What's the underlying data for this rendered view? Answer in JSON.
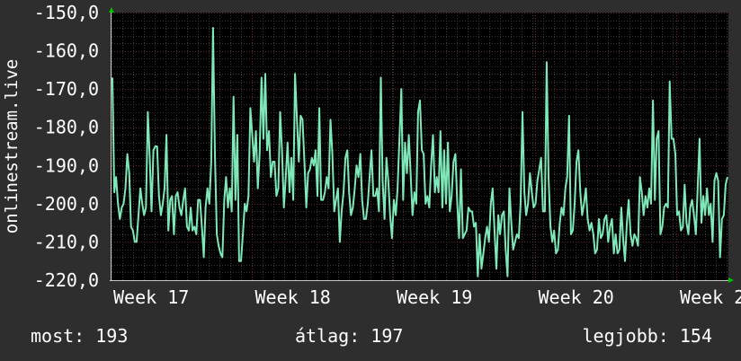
{
  "chart_data": {
    "type": "line",
    "ylabel": "onlinestream.live",
    "y_ticks": [
      "-150,0",
      "-160,0",
      "-170,0",
      "-180,0",
      "-190,0",
      "-200,0",
      "-210,0",
      "-220,0"
    ],
    "ylim": [
      -220,
      -150
    ],
    "x_ticks": [
      "Week 17",
      "Week 18",
      "Week 19",
      "Week 20",
      "Week 2"
    ],
    "grid": true,
    "colors": {
      "background": "#2e2e2e",
      "plot": "#000000",
      "line": "#7fe8b8",
      "minor_grid": "#3a3a3a",
      "major_grid": "#6b2a2a",
      "axis_marker": "#00c000"
    },
    "series": [
      {
        "values": [
          -167,
          -197,
          -193,
          -200,
          -204,
          -201,
          -200,
          -196,
          -187,
          -192,
          -206,
          -207,
          -210,
          -210,
          -203,
          -196,
          -200,
          -203,
          -201,
          -176,
          -188,
          -202,
          -186,
          -185,
          -185,
          -198,
          -203,
          -200,
          -196,
          -182,
          -207,
          -199,
          -198,
          -208,
          -198,
          -197,
          -201,
          -203,
          -199,
          -196,
          -206,
          -207,
          -201,
          -207,
          -206,
          -208,
          -199,
          -199,
          -206,
          -214,
          -201,
          -196,
          -200,
          -189,
          -154,
          -187,
          -208,
          -211,
          -213,
          -214,
          -199,
          -193,
          -201,
          -196,
          -202,
          -172,
          -199,
          -182,
          -215,
          -215,
          -208,
          -200,
          -202,
          -198,
          -175,
          -182,
          -189,
          -181,
          -196,
          -187,
          -167,
          -183,
          -166,
          -186,
          -181,
          -193,
          -189,
          -189,
          -198,
          -196,
          -176,
          -186,
          -201,
          -193,
          -184,
          -197,
          -188,
          -199,
          -166,
          -178,
          -189,
          -177,
          -178,
          -189,
          -201,
          -192,
          -191,
          -188,
          -190,
          -186,
          -198,
          -175,
          -199,
          -199,
          -197,
          -193,
          -196,
          -178,
          -187,
          -202,
          -199,
          -196,
          -210,
          -202,
          -197,
          -188,
          -186,
          -197,
          -203,
          -201,
          -196,
          -190,
          -193,
          -187,
          -199,
          -204,
          -204,
          -200,
          -193,
          -186,
          -198,
          -198,
          -196,
          -202,
          -167,
          -194,
          -204,
          -188,
          -194,
          -203,
          -209,
          -199,
          -203,
          -196,
          -183,
          -170,
          -199,
          -184,
          -192,
          -182,
          -192,
          -203,
          -197,
          -200,
          -176,
          -173,
          -186,
          -187,
          -200,
          -198,
          -201,
          -190,
          -182,
          -197,
          -193,
          -197,
          -181,
          -201,
          -186,
          -200,
          -184,
          -202,
          -198,
          -189,
          -187,
          -200,
          -209,
          -191,
          -209,
          -208,
          -207,
          -201,
          -202,
          -202,
          -206,
          -205,
          -219,
          -208,
          -217,
          -213,
          -209,
          -206,
          -210,
          -200,
          -196,
          -207,
          -217,
          -203,
          -208,
          -203,
          -202,
          -212,
          -219,
          -196,
          -205,
          -212,
          -210,
          -208,
          -209,
          -200,
          -176,
          -197,
          -203,
          -200,
          -192,
          -197,
          -201,
          -200,
          -194,
          -191,
          -188,
          -202,
          -202,
          -163,
          -193,
          -206,
          -210,
          -207,
          -213,
          -212,
          -205,
          -201,
          -203,
          -196,
          -193,
          -177,
          -208,
          -207,
          -200,
          -189,
          -186,
          -197,
          -203,
          -200,
          -196,
          -204,
          -207,
          -205,
          -208,
          -213,
          -212,
          -204,
          -209,
          -208,
          -204,
          -203,
          -210,
          -206,
          -204,
          -213,
          -208,
          -213,
          -212,
          -201,
          -209,
          -215,
          -205,
          -199,
          -208,
          -211,
          -208,
          -209,
          -211,
          -193,
          -197,
          -203,
          -198,
          -201,
          -196,
          -200,
          -173,
          -199,
          -183,
          -181,
          -208,
          -206,
          -201,
          -200,
          -201,
          -168,
          -183,
          -183,
          -187,
          -203,
          -202,
          -207,
          -206,
          -195,
          -205,
          -208,
          -201,
          -199,
          -203,
          -208,
          -196,
          -183,
          -205,
          -198,
          -203,
          -196,
          -203,
          -200,
          -210,
          -194,
          -192,
          -194,
          -214,
          -204,
          -203,
          -195,
          -193
        ]
      }
    ]
  },
  "stats": {
    "now": "most: 193",
    "avg": "átlag: 197",
    "best": "legjobb: 154"
  }
}
